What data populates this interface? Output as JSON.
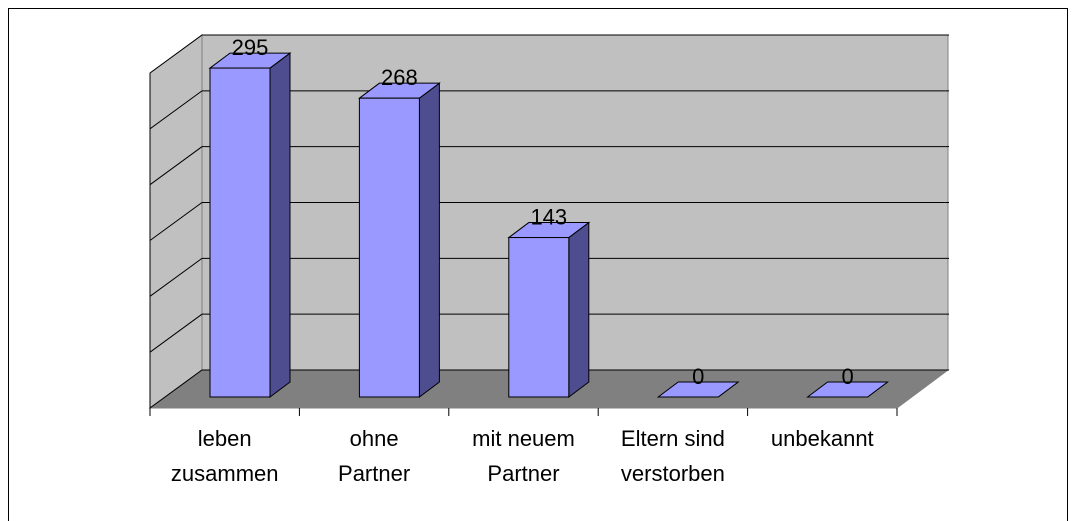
{
  "chart_data": {
    "type": "bar3d",
    "categories": [
      [
        "leben",
        "zusammen"
      ],
      [
        "ohne",
        "Partner"
      ],
      [
        "mit neuem",
        "Partner"
      ],
      [
        "Eltern sind",
        "verstorben"
      ],
      [
        "unbekannt"
      ]
    ],
    "values": [
      295,
      268,
      143,
      0,
      0
    ],
    "color": "#9999ff",
    "ylim": [
      0,
      300
    ],
    "yticks": [
      0,
      50,
      100,
      150,
      200,
      250,
      300
    ],
    "grid": true
  }
}
